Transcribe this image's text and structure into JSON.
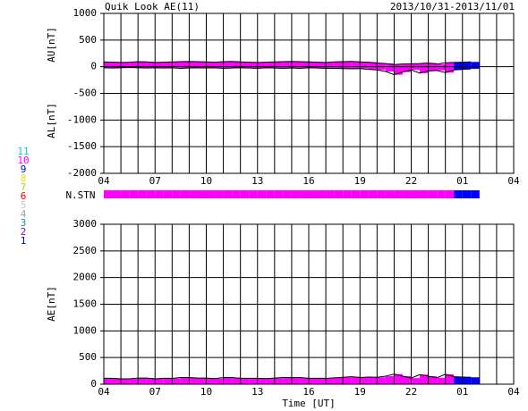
{
  "chart_data": {
    "type": "area",
    "title": "Quik Look AE(11)",
    "subtitle": "2013/10/31-2013/11/01",
    "xlabel": "Time [UT]",
    "x": [
      0,
      0.5,
      1,
      1.5,
      2,
      2.5,
      3,
      3.5,
      4,
      4.5,
      5,
      5.5,
      6,
      6.5,
      7,
      7.5,
      8,
      8.5,
      9,
      9.5,
      10,
      10.5,
      11,
      11.5,
      12,
      12.5,
      13,
      13.5,
      14,
      14.5,
      15,
      15.5,
      16,
      16.5,
      17,
      17.5,
      18,
      18.5,
      19,
      19.5,
      20,
      20.5,
      21,
      21.5
    ],
    "xlim": [
      0,
      24
    ],
    "xticks": [
      {
        "value": 0,
        "label": "04"
      },
      {
        "value": 3,
        "label": "07"
      },
      {
        "value": 6,
        "label": "10"
      },
      {
        "value": 9,
        "label": "13"
      },
      {
        "value": 12,
        "label": "16"
      },
      {
        "value": 15,
        "label": "19"
      },
      {
        "value": 18,
        "label": "22"
      },
      {
        "value": 21,
        "label": "01"
      },
      {
        "value": 24,
        "label": "04"
      }
    ],
    "xgrid": [
      0,
      1,
      2,
      3,
      4,
      5,
      6,
      7,
      8,
      9,
      10,
      11,
      12,
      13,
      14,
      15,
      16,
      17,
      18,
      19,
      20,
      21,
      22,
      23,
      24
    ],
    "station_label": "N.STN",
    "stations": [
      10,
      10,
      10,
      10,
      10,
      10,
      10,
      10,
      10,
      10,
      10,
      10,
      10,
      10,
      10,
      10,
      10,
      10,
      10,
      10,
      10,
      10,
      10,
      10,
      10,
      10,
      10,
      10,
      10,
      10,
      10,
      10,
      10,
      10,
      10,
      10,
      10,
      10,
      10,
      10,
      10,
      9,
      9,
      9
    ],
    "station_legend": [
      {
        "count": 11,
        "color": "#00d0d0"
      },
      {
        "count": 10,
        "color": "#ff00ff"
      },
      {
        "count": 9,
        "color": "#0000ff"
      },
      {
        "count": 8,
        "color": "#e8e000"
      },
      {
        "count": 7,
        "color": "#a8e000"
      },
      {
        "count": 6,
        "color": "#ff0000"
      },
      {
        "count": 5,
        "color": "#c8c8c8"
      },
      {
        "count": 4,
        "color": "#a0a0a0"
      },
      {
        "count": 3,
        "color": "#00a0a0"
      },
      {
        "count": 2,
        "color": "#a000a0"
      },
      {
        "count": 1,
        "color": "#0000c0"
      }
    ],
    "panels": [
      {
        "ylim": [
          -2000,
          1000
        ],
        "yticks": [
          -2000,
          -1500,
          -1000,
          -500,
          0,
          500,
          1000
        ],
        "ylabels": [
          "AU[nT]",
          "AL[nT]"
        ],
        "series": [
          {
            "values": [
              90,
              85,
              80,
              85,
              95,
              90,
              80,
              85,
              90,
              95,
              100,
              95,
              90,
              85,
              95,
              100,
              90,
              85,
              80,
              85,
              90,
              95,
              100,
              95,
              90,
              85,
              80,
              90,
              95,
              100,
              90,
              85,
              70,
              60,
              40,
              50,
              55,
              60,
              70,
              50,
              75,
              80,
              85,
              90
            ]
          },
          {
            "values": [
              -20,
              -25,
              -20,
              -15,
              -20,
              -25,
              -20,
              -25,
              -20,
              -30,
              -25,
              -20,
              -25,
              -20,
              -30,
              -25,
              -20,
              -25,
              -30,
              -20,
              -25,
              -30,
              -25,
              -30,
              -20,
              -25,
              -30,
              -30,
              -35,
              -40,
              -35,
              -50,
              -60,
              -90,
              -150,
              -100,
              -60,
              -120,
              -80,
              -70,
              -110,
              -60,
              -50,
              -40
            ]
          }
        ]
      },
      {
        "ylim": [
          0,
          3000
        ],
        "yticks": [
          0,
          500,
          1000,
          1500,
          2000,
          2500,
          3000
        ],
        "ylabels": [
          "AE[nT]"
        ],
        "series": [
          {
            "values": [
              110,
              110,
              100,
              100,
              115,
              115,
              100,
              110,
              110,
              125,
              125,
              115,
              115,
              105,
              125,
              125,
              110,
              110,
              110,
              105,
              115,
              125,
              125,
              125,
              110,
              110,
              110,
              120,
              130,
              140,
              125,
              135,
              130,
              150,
              190,
              150,
              115,
              180,
              150,
              120,
              185,
              140,
              135,
              130
            ]
          }
        ]
      }
    ]
  }
}
